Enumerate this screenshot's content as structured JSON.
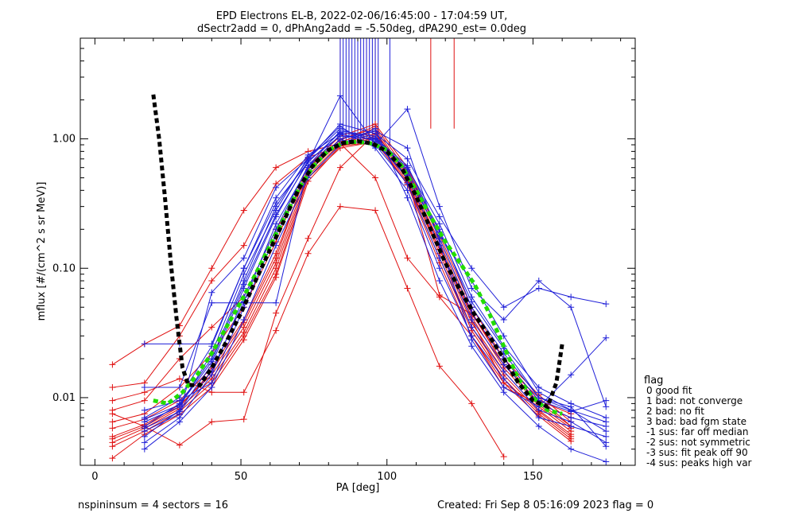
{
  "chart_data": {
    "type": "line",
    "title": "EPD Electrons EL-B, 2022-02-06/16:45:00 - 17:04:59 UT,",
    "subtitle": "dSectr2add = 0, dPhAng2add = -5.50deg, dPA290_est=   0.0deg",
    "xlabel": "PA [deg]",
    "ylabel": "mflux [#/(cm^2 s sr MeV)]",
    "x_ticks": [
      "0",
      "50",
      "100",
      "150"
    ],
    "x_tick_values": [
      0,
      50,
      100,
      150
    ],
    "y_ticks": [
      "0.01",
      "0.10",
      "1.00"
    ],
    "y_tick_values": [
      0.01,
      0.1,
      1.0
    ],
    "xlim": [
      -5,
      185
    ],
    "ylim": [
      0.003,
      6
    ],
    "yscale": "log",
    "grid": false,
    "legend_position": "right",
    "colors": {
      "blue": "#1f1fd8",
      "red": "#e01010",
      "green": "#22dd00",
      "black": "#000000"
    },
    "pa_bins": [
      6,
      17,
      29,
      40,
      51,
      62,
      73,
      84,
      96,
      107,
      118,
      129,
      140,
      152,
      163,
      175
    ],
    "blue_profiles": [
      [
        null,
        0.0045,
        0.007,
        0.015,
        0.06,
        0.2,
        0.62,
        1.15,
        1.05,
        0.55,
        0.2,
        0.05,
        0.022,
        0.01,
        0.008,
        0.0055
      ],
      [
        null,
        0.006,
        0.009,
        0.02,
        0.08,
        0.3,
        0.7,
        1.2,
        0.95,
        0.5,
        0.15,
        0.04,
        0.018,
        0.009,
        0.007,
        0.006
      ],
      [
        null,
        0.007,
        0.01,
        0.025,
        0.1,
        0.35,
        0.75,
        1.1,
        0.9,
        0.45,
        0.12,
        0.035,
        0.016,
        0.008,
        0.0065,
        0.0045
      ],
      [
        null,
        0.005,
        0.008,
        0.018,
        0.07,
        0.25,
        0.68,
        1.05,
        1.0,
        0.6,
        0.22,
        0.06,
        0.025,
        0.012,
        0.009,
        0.007
      ],
      [
        null,
        0.0065,
        0.0085,
        0.022,
        0.09,
        0.28,
        0.72,
        1.25,
        0.85,
        0.4,
        0.1,
        0.03,
        0.014,
        0.007,
        0.006,
        0.005
      ],
      [
        null,
        0.026,
        0.026,
        0.026,
        0.1,
        0.32,
        0.66,
        2.15,
        0.92,
        0.52,
        0.18,
        0.08,
        0.03,
        0.011,
        0.008,
        0.0065
      ],
      [
        null,
        0.012,
        0.012,
        0.054,
        0.054,
        0.054,
        0.62,
        0.98,
        0.9,
        1.7,
        0.3,
        0.07,
        0.04,
        0.08,
        0.05,
        0.0085
      ],
      [
        null,
        0.0055,
        0.0075,
        0.065,
        0.12,
        0.42,
        0.7,
        1.3,
        1.1,
        0.7,
        0.25,
        0.1,
        0.05,
        0.07,
        0.06,
        0.053
      ],
      [
        null,
        0.008,
        0.0095,
        0.013,
        0.05,
        0.18,
        0.55,
        1.0,
        1.15,
        0.85,
        0.16,
        0.028,
        0.012,
        0.0085,
        0.015,
        0.029
      ],
      [
        null,
        0.004,
        0.0065,
        0.012,
        0.04,
        0.15,
        0.5,
        0.9,
        1.2,
        0.35,
        0.08,
        0.025,
        0.011,
        0.006,
        0.004,
        0.0032
      ],
      [
        null,
        0.0058,
        0.0078,
        0.016,
        0.055,
        0.22,
        0.6,
        1.08,
        0.98,
        0.58,
        0.17,
        0.045,
        0.02,
        0.0095,
        0.0078,
        0.0095
      ],
      [
        null,
        0.0068,
        0.0088,
        0.019,
        0.075,
        0.26,
        0.66,
        1.12,
        1.02,
        0.62,
        0.19,
        0.055,
        0.024,
        0.01,
        0.0085,
        0.0042
      ]
    ],
    "red_profiles": [
      [
        0.018,
        0.026,
        0.036,
        0.1,
        0.28,
        0.6,
        0.8,
        0.92,
        0.5,
        0.12,
        0.06,
        0.03,
        0.012,
        0.009,
        0.007,
        null
      ],
      [
        0.012,
        0.013,
        0.03,
        0.08,
        0.15,
        0.45,
        0.72,
        0.88,
        0.95,
        0.45,
        0.14,
        0.045,
        0.018,
        0.01,
        0.006,
        null
      ],
      [
        0.0095,
        0.011,
        0.014,
        0.011,
        0.011,
        0.033,
        0.13,
        0.3,
        0.28,
        0.07,
        0.0175,
        0.009,
        0.0035,
        null,
        null,
        null
      ],
      [
        0.008,
        0.0095,
        0.02,
        0.035,
        0.06,
        0.2,
        0.5,
        0.85,
        0.95,
        0.5,
        0.062,
        0.044,
        0.02,
        0.0095,
        0.0075,
        null
      ],
      [
        0.0075,
        0.006,
        0.0043,
        0.0065,
        0.0068,
        0.045,
        0.17,
        0.6,
        1.1,
        0.55,
        0.15,
        0.04,
        0.013,
        0.0085,
        0.0055,
        null
      ],
      [
        0.0065,
        0.0075,
        0.012,
        0.022,
        0.05,
        0.16,
        0.62,
        1.05,
        1.3,
        0.6,
        0.18,
        0.05,
        0.02,
        0.0105,
        0.0065,
        null
      ],
      [
        0.0058,
        0.0068,
        0.0095,
        0.017,
        0.04,
        0.13,
        0.58,
        1.0,
        1.2,
        0.52,
        0.16,
        0.042,
        0.017,
        0.0088,
        0.0058,
        null
      ],
      [
        0.005,
        0.0062,
        0.0088,
        0.015,
        0.035,
        0.11,
        0.55,
        0.95,
        1.15,
        0.5,
        0.14,
        0.038,
        0.016,
        0.008,
        0.0052,
        null
      ],
      [
        0.0045,
        0.0058,
        0.0082,
        0.014,
        0.032,
        0.1,
        0.52,
        0.92,
        1.1,
        0.48,
        0.13,
        0.035,
        0.015,
        0.0078,
        0.005,
        null
      ],
      [
        0.0042,
        0.0055,
        0.0078,
        0.013,
        0.03,
        0.09,
        0.5,
        0.9,
        1.05,
        0.46,
        0.12,
        0.033,
        0.014,
        0.0075,
        0.0048,
        null
      ],
      [
        0.0034,
        0.0052,
        0.0074,
        0.012,
        0.028,
        0.085,
        0.47,
        0.88,
        1.02,
        0.44,
        0.11,
        0.03,
        0.013,
        0.0072,
        0.0046,
        null
      ],
      [
        0.0048,
        0.006,
        0.0085,
        0.016,
        0.038,
        0.12,
        0.6,
        0.98,
        1.25,
        0.56,
        0.17,
        0.046,
        0.018,
        0.0092,
        0.006,
        null
      ]
    ],
    "blue_spikes_pa": [
      84,
      85,
      86,
      87,
      88,
      89,
      90,
      91,
      92,
      93,
      94,
      95,
      96,
      97,
      101
    ],
    "red_spikes_pa": [
      84,
      87,
      93,
      96,
      115,
      123
    ],
    "green_fit": {
      "pa": [
        20,
        25,
        30,
        35,
        40,
        45,
        50,
        55,
        60,
        65,
        70,
        75,
        80,
        85,
        90,
        95,
        100,
        105,
        110,
        115,
        120,
        125,
        130,
        135,
        140,
        145,
        150,
        155,
        160
      ],
      "flux": [
        0.0095,
        0.009,
        0.011,
        0.015,
        0.022,
        0.035,
        0.055,
        0.09,
        0.15,
        0.25,
        0.42,
        0.62,
        0.82,
        0.93,
        0.95,
        0.92,
        0.82,
        0.62,
        0.4,
        0.25,
        0.16,
        0.11,
        0.075,
        0.045,
        0.025,
        0.014,
        0.01,
        0.008,
        0.0075
      ]
    },
    "black_fit": {
      "pa": [
        20,
        22,
        24,
        26,
        28,
        30,
        32,
        36,
        40,
        45,
        50,
        55,
        60,
        65,
        70,
        75,
        80,
        85,
        90,
        95,
        100,
        105,
        110,
        115,
        120,
        125,
        130,
        135,
        140,
        145,
        150,
        155,
        158,
        160
      ],
      "flux": [
        2.2,
        1.0,
        0.35,
        0.11,
        0.04,
        0.017,
        0.0125,
        0.0125,
        0.017,
        0.027,
        0.045,
        0.08,
        0.14,
        0.24,
        0.42,
        0.64,
        0.82,
        0.93,
        0.96,
        0.92,
        0.8,
        0.6,
        0.36,
        0.2,
        0.11,
        0.068,
        0.044,
        0.03,
        0.02,
        0.013,
        0.0095,
        0.0085,
        0.013,
        0.026
      ]
    },
    "legend": {
      "title": "flag",
      "entries": [
        "0 good fit",
        "1 bad: not converge",
        "2 bad: no fit",
        "3 bad: bad fgm state",
        "-1 sus: far off median",
        "-2 sus: not symmetric",
        "-3 sus: fit peak off 90",
        "-4 sus: peaks high var"
      ]
    },
    "footer_left": "nspininsum =  4  sectors = 16",
    "footer_right": "Created: Fri Sep  8 05:16:09 2023   flag = 0"
  }
}
